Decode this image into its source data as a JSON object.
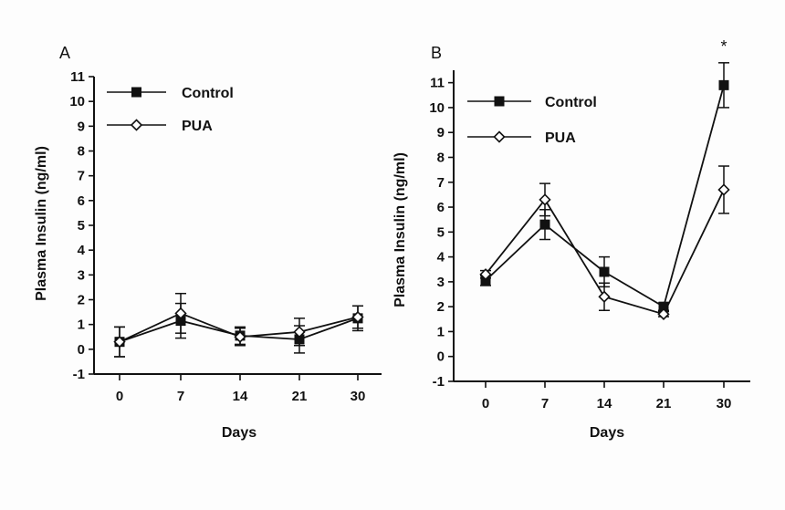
{
  "colors": {
    "ink": "#111111",
    "background": "#fdfdfd",
    "open_marker_fill": "#ffffff"
  },
  "chart_data": [
    {
      "type": "line",
      "panel_label": "A",
      "xlabel": "Days",
      "ylabel": "Plasma Insulin (ng/ml)",
      "categories": [
        "0",
        "7",
        "14",
        "21",
        "30"
      ],
      "ylim": [
        -1,
        11
      ],
      "yticks": [
        "-1",
        "0",
        "1",
        "2",
        "3",
        "4",
        "5",
        "6",
        "7",
        "8",
        "9",
        "10",
        "11"
      ],
      "grid": false,
      "legend_position": "top-left",
      "annotations": [],
      "series": [
        {
          "name": "Control",
          "marker": "filled-square",
          "values": [
            0.3,
            1.15,
            0.55,
            0.4,
            1.25
          ],
          "errors": [
            0.6,
            0.7,
            0.35,
            0.55,
            0.5
          ]
        },
        {
          "name": "PUA",
          "marker": "open-diamond",
          "values": [
            0.3,
            1.45,
            0.5,
            0.7,
            1.3
          ],
          "errors": [
            0.6,
            0.8,
            0.35,
            0.55,
            0.45
          ]
        }
      ]
    },
    {
      "type": "line",
      "panel_label": "B",
      "xlabel": "Days",
      "ylabel": "Plasma Insulin (ng/ml)",
      "categories": [
        "0",
        "7",
        "14",
        "21",
        "30"
      ],
      "ylim": [
        -1,
        11.5
      ],
      "yticks": [
        "-1",
        "0",
        "1",
        "2",
        "3",
        "4",
        "5",
        "6",
        "7",
        "8",
        "9",
        "10",
        "11"
      ],
      "grid": false,
      "legend_position": "top-left",
      "annotations": [
        {
          "category": "30",
          "text": "*"
        }
      ],
      "series": [
        {
          "name": "Control",
          "marker": "filled-square",
          "values": [
            3.05,
            5.3,
            3.4,
            2.0,
            10.9
          ],
          "errors": [
            0.2,
            0.6,
            0.6,
            0.15,
            0.9
          ]
        },
        {
          "name": "PUA",
          "marker": "open-diamond",
          "values": [
            3.3,
            6.3,
            2.4,
            1.7,
            6.7
          ],
          "errors": [
            0.15,
            0.65,
            0.55,
            0.1,
            0.95
          ]
        }
      ]
    }
  ]
}
